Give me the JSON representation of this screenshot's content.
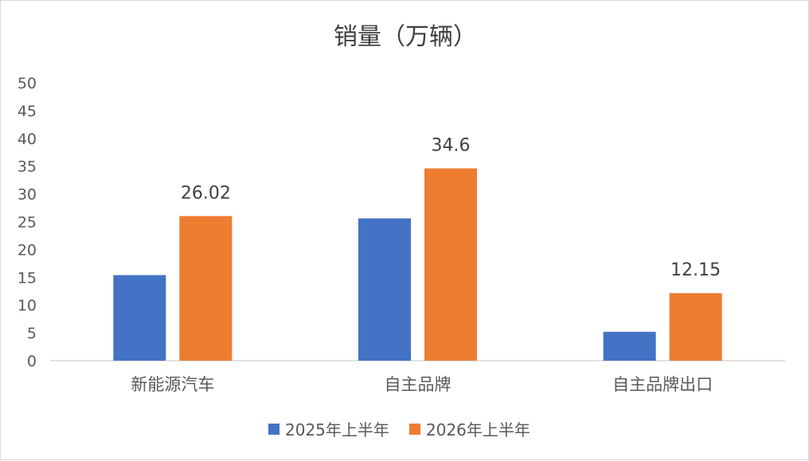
{
  "chart_data": {
    "type": "bar",
    "title": "销量（万辆）",
    "xlabel": "",
    "ylabel": "",
    "categories": [
      "新能源汽车",
      "自主品牌",
      "自主品牌出口"
    ],
    "series": [
      {
        "name": "2025年上半年",
        "values": [
          15.4,
          25.6,
          5.2
        ],
        "color": "#4472C4",
        "show_labels": false
      },
      {
        "name": "2026年上半年",
        "values": [
          26.02,
          34.6,
          12.15
        ],
        "color": "#ED7D31",
        "show_labels": true
      }
    ],
    "data_labels": [
      "",
      "",
      "",
      "26.02",
      "34.6",
      "12.15"
    ],
    "ylim": [
      0,
      50
    ],
    "yticks": [
      0,
      5,
      10,
      15,
      20,
      25,
      30,
      35,
      40,
      45,
      50
    ],
    "grid": false,
    "legend_position": "bottom"
  }
}
